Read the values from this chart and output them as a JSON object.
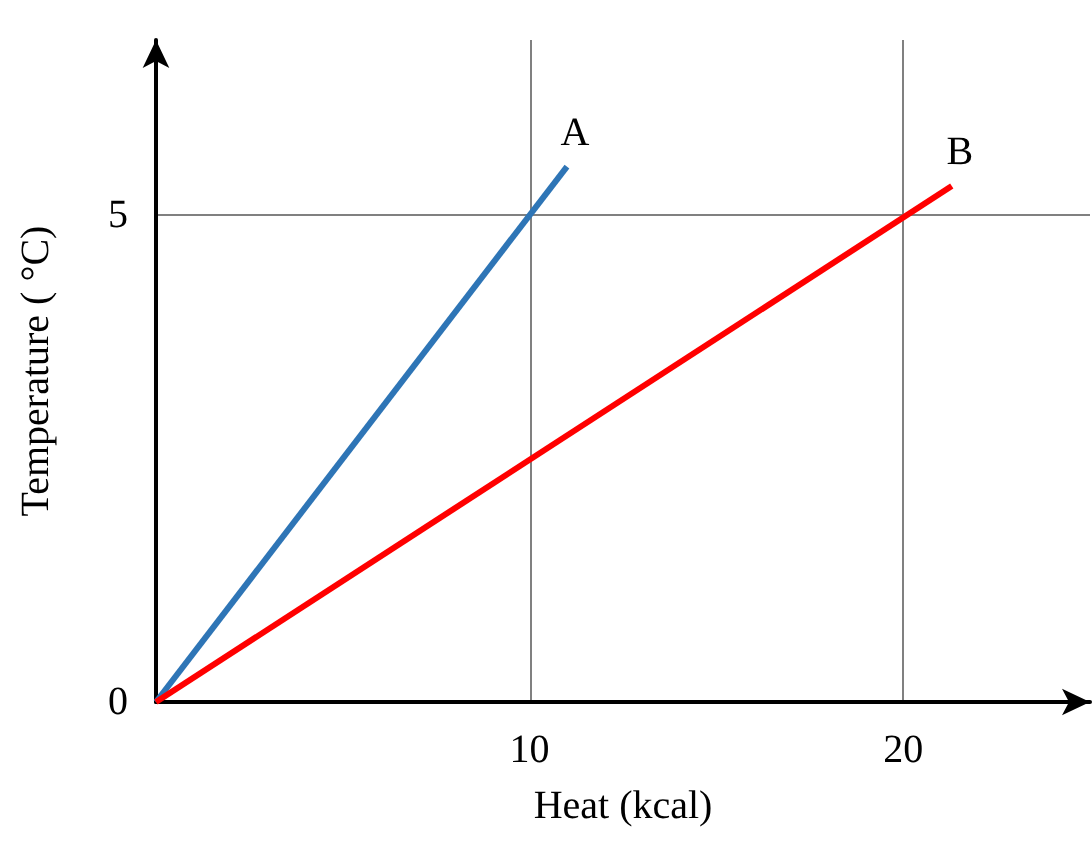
{
  "chart_data": {
    "type": "line",
    "xlabel": "Heat (kcal)",
    "ylabel": "Temperature ( °C)",
    "xlim": [
      0,
      25
    ],
    "ylim": [
      0,
      6.8
    ],
    "xticks": [
      {
        "value": 0,
        "label": null
      },
      10,
      20
    ],
    "yticks": [
      0,
      5
    ],
    "grid": true,
    "legend": false,
    "marker": "none",
    "line_style": "solid",
    "series": [
      {
        "name": "A",
        "color": "#2e75b6",
        "x": [
          0,
          11
        ],
        "values": [
          0,
          5.5
        ]
      },
      {
        "name": "B",
        "color": "#ff0000",
        "x": [
          0,
          21.3
        ],
        "values": [
          0,
          5.3
        ]
      }
    ]
  }
}
